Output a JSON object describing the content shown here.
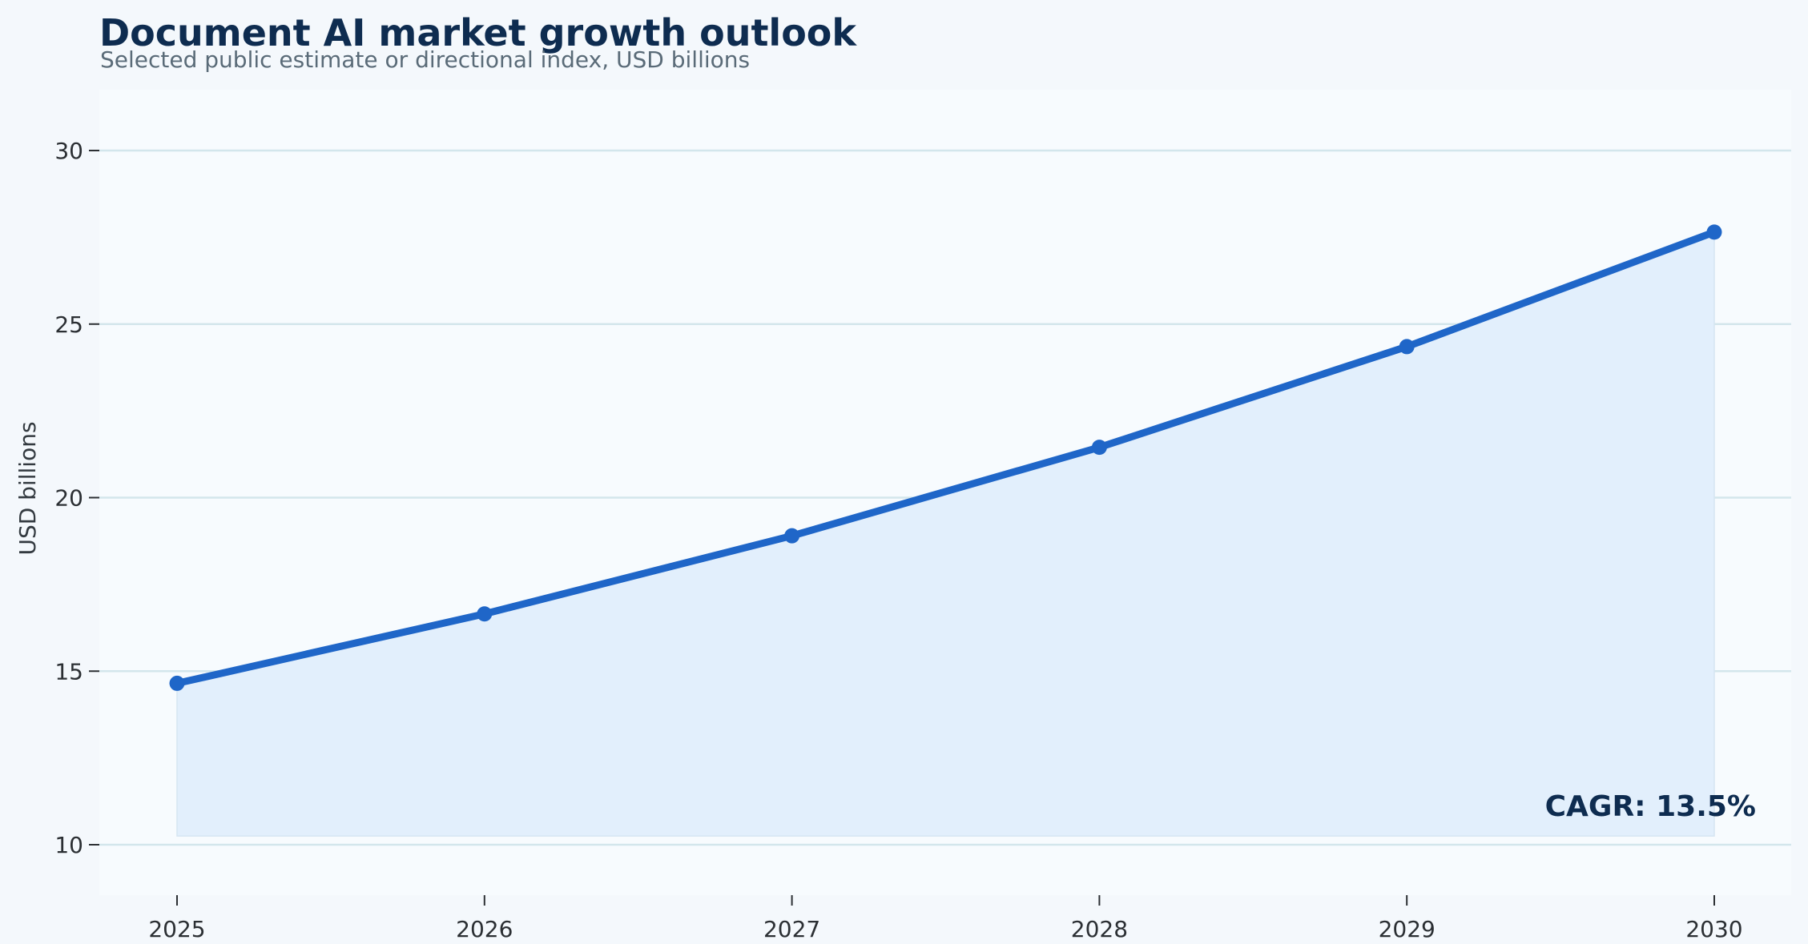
{
  "chart_data": {
    "type": "line",
    "title": "Document AI market growth outlook",
    "subtitle": "Selected public estimate or directional index, USD billions",
    "xlabel": "",
    "ylabel": "USD billions",
    "x": [
      2025,
      2026,
      2027,
      2028,
      2029,
      2030
    ],
    "x_tick_labels": [
      "2025",
      "2026",
      "2027",
      "2028",
      "2029",
      "2030"
    ],
    "series": [
      {
        "values": [
          14.65,
          16.65,
          18.9,
          21.45,
          24.35,
          27.65
        ],
        "color": "#1f66c8",
        "fill_color": "#e2effc"
      }
    ],
    "ylim": [
      8.9,
      32.0
    ],
    "y_ticks": [
      10,
      15,
      20,
      25,
      30
    ],
    "y_tick_labels": [
      "10",
      "15",
      "20",
      "25",
      "30"
    ],
    "area_baseline": 10.25,
    "grid": "horizontal",
    "annotation": {
      "text": "CAGR: 13.5%",
      "placement": "bottom-right"
    },
    "colors": {
      "page_background": "#f4f8fc",
      "plot_background": "#f7fbfe",
      "gridline": "#d3e6ec",
      "title": "#0e2c50",
      "subtitle": "#5a6b78"
    }
  }
}
